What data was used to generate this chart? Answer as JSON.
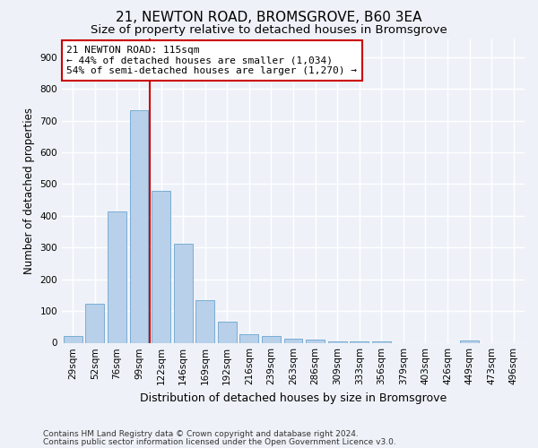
{
  "title1": "21, NEWTON ROAD, BROMSGROVE, B60 3EA",
  "title2": "Size of property relative to detached houses in Bromsgrove",
  "xlabel": "Distribution of detached houses by size in Bromsgrove",
  "ylabel": "Number of detached properties",
  "categories": [
    "29sqm",
    "52sqm",
    "76sqm",
    "99sqm",
    "122sqm",
    "146sqm",
    "169sqm",
    "192sqm",
    "216sqm",
    "239sqm",
    "263sqm",
    "286sqm",
    "309sqm",
    "333sqm",
    "356sqm",
    "379sqm",
    "403sqm",
    "426sqm",
    "449sqm",
    "473sqm",
    "496sqm"
  ],
  "values": [
    22,
    122,
    415,
    733,
    480,
    313,
    133,
    65,
    28,
    22,
    12,
    10,
    5,
    4,
    4,
    0,
    0,
    0,
    8,
    0,
    0
  ],
  "bar_color": "#b8d0ea",
  "bar_edge_color": "#7aadd4",
  "vline_color": "#cc0000",
  "annotation_text": "21 NEWTON ROAD: 115sqm\n← 44% of detached houses are smaller (1,034)\n54% of semi-detached houses are larger (1,270) →",
  "annotation_box_color": "#ffffff",
  "annotation_box_edge_color": "#cc0000",
  "ylim": [
    0,
    960
  ],
  "yticks": [
    0,
    100,
    200,
    300,
    400,
    500,
    600,
    700,
    800,
    900
  ],
  "footer1": "Contains HM Land Registry data © Crown copyright and database right 2024.",
  "footer2": "Contains public sector information licensed under the Open Government Licence v3.0.",
  "bg_color": "#eef2f8",
  "plot_bg_color": "#eef2f8",
  "grid_color": "#ffffff",
  "title1_fontsize": 11,
  "title2_fontsize": 9.5,
  "xlabel_fontsize": 9,
  "ylabel_fontsize": 8.5,
  "tick_fontsize": 7.5,
  "annotation_fontsize": 8,
  "footer_fontsize": 6.5
}
